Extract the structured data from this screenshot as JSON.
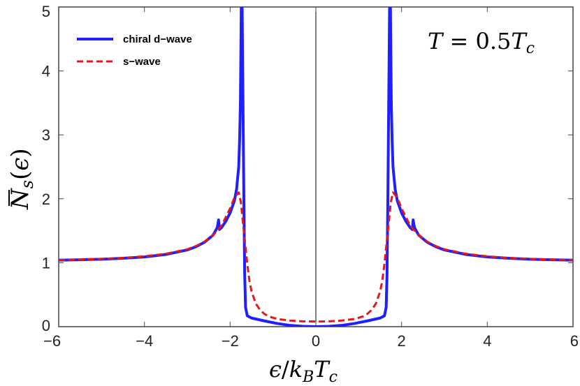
{
  "chart_data": {
    "type": "line",
    "xlabel": {
      "eps": "ϵ",
      "slash": "/",
      "k": "k",
      "k_sub": "B",
      "T": "T",
      "T_sub": "c"
    },
    "ylabel": {
      "N": "N",
      "sub": "s",
      "open": "(",
      "arg": "ϵ",
      "close": ")"
    },
    "annotation": {
      "T": "T",
      "eq": " = 0.5",
      "T2": "T",
      "sub": "c"
    },
    "xlim": [
      -6,
      6
    ],
    "ylim": [
      0,
      5
    ],
    "x_ticks": [
      "-6",
      "-4",
      "-2",
      "0",
      "2",
      "4",
      "6"
    ],
    "y_ticks": [
      "0",
      "1",
      "2",
      "3",
      "4",
      "5"
    ],
    "x_tick_values": [
      -6,
      -4,
      -2,
      0,
      2,
      4,
      6
    ],
    "y_tick_values": [
      0,
      1,
      2,
      3,
      4,
      5
    ],
    "grid": false,
    "legend_position": "top-left",
    "series": [
      {
        "name": "chiral d−wave",
        "color": "#1f1fff",
        "style": "solid",
        "points": [
          [
            0,
            0.0
          ],
          [
            0.3,
            0.005
          ],
          [
            0.6,
            0.02
          ],
          [
            0.9,
            0.05
          ],
          [
            1.2,
            0.09
          ],
          [
            1.4,
            0.12
          ],
          [
            1.5,
            0.135
          ],
          [
            1.6,
            0.17
          ],
          [
            1.64,
            0.3
          ],
          [
            1.66,
            0.8
          ],
          [
            1.68,
            2.0
          ],
          [
            1.7,
            3.5
          ],
          [
            1.72,
            5.0
          ],
          [
            1.74,
            5.0
          ],
          [
            1.76,
            3.5
          ],
          [
            1.78,
            2.9
          ],
          [
            1.8,
            2.5
          ],
          [
            1.85,
            2.15
          ],
          [
            1.9,
            1.97
          ],
          [
            2.0,
            1.78
          ],
          [
            2.1,
            1.65
          ],
          [
            2.2,
            1.55
          ],
          [
            2.25,
            1.52
          ],
          [
            2.27,
            1.67
          ],
          [
            2.3,
            1.55
          ],
          [
            2.4,
            1.43
          ],
          [
            2.6,
            1.32
          ],
          [
            2.8,
            1.25
          ],
          [
            3.0,
            1.2
          ],
          [
            3.5,
            1.13
          ],
          [
            4.0,
            1.09
          ],
          [
            4.5,
            1.07
          ],
          [
            5.0,
            1.055
          ],
          [
            5.5,
            1.047
          ],
          [
            6.0,
            1.04
          ]
        ]
      },
      {
        "name": "s−wave",
        "color": "#e0191c",
        "style": "dashed",
        "points": [
          [
            0,
            0.08
          ],
          [
            0.3,
            0.083
          ],
          [
            0.6,
            0.095
          ],
          [
            0.9,
            0.12
          ],
          [
            1.1,
            0.16
          ],
          [
            1.2,
            0.2
          ],
          [
            1.3,
            0.26
          ],
          [
            1.4,
            0.36
          ],
          [
            1.5,
            0.55
          ],
          [
            1.55,
            0.72
          ],
          [
            1.6,
            0.98
          ],
          [
            1.65,
            1.3
          ],
          [
            1.7,
            1.62
          ],
          [
            1.75,
            1.95
          ],
          [
            1.8,
            2.1
          ],
          [
            1.9,
            2.02
          ],
          [
            2.0,
            1.85
          ],
          [
            2.2,
            1.58
          ],
          [
            2.4,
            1.43
          ],
          [
            2.6,
            1.33
          ],
          [
            2.8,
            1.26
          ],
          [
            3.0,
            1.21
          ],
          [
            3.5,
            1.14
          ],
          [
            4.0,
            1.1
          ],
          [
            4.5,
            1.075
          ],
          [
            5.0,
            1.06
          ],
          [
            5.5,
            1.05
          ],
          [
            6.0,
            1.04
          ]
        ]
      }
    ],
    "symmetry": "even in x; points given for x >= 0"
  }
}
